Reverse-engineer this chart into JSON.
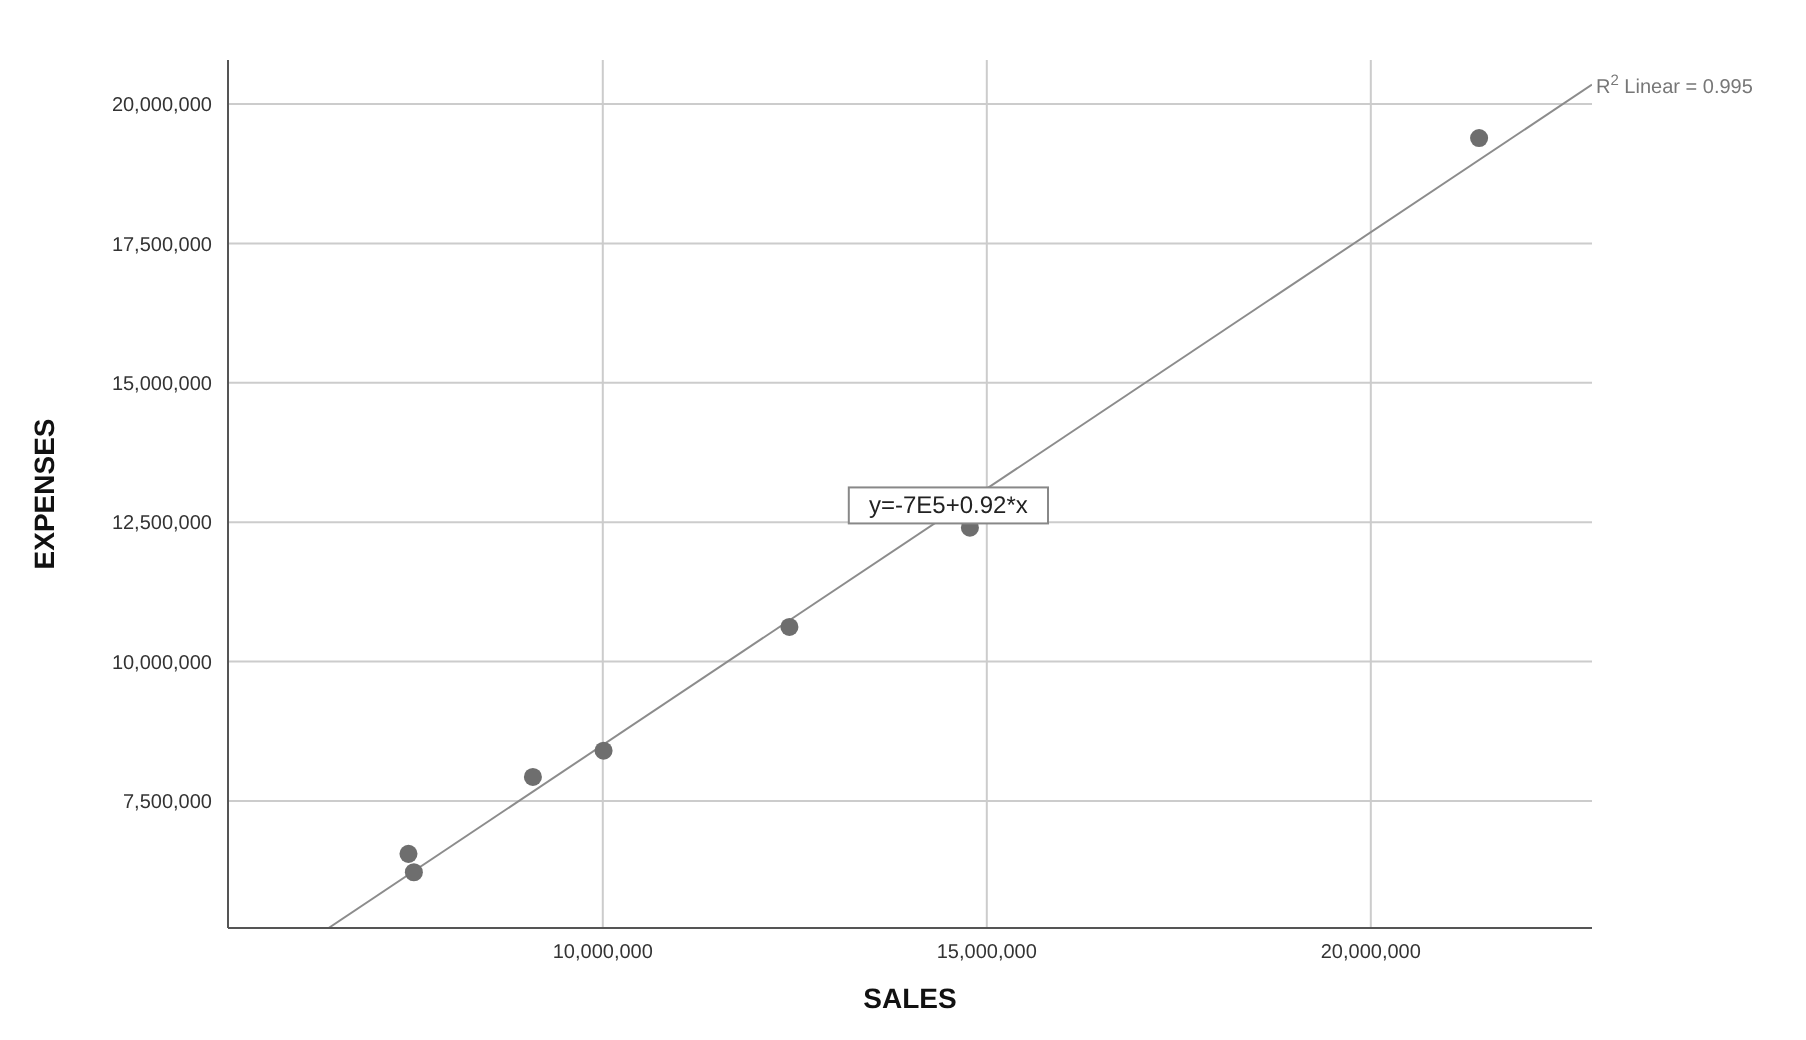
{
  "chart_data": {
    "type": "scatter",
    "xlabel": "SALES",
    "ylabel": "EXPENSES",
    "xlim": [
      5120000,
      22880000
    ],
    "xticks": [
      {
        "value": 10000000,
        "label": "10,000,000"
      },
      {
        "value": 15000000,
        "label": "15,000,000"
      },
      {
        "value": 20000000,
        "label": "20,000,000"
      }
    ],
    "ylim": [
      5220000,
      20790000
    ],
    "yticks": [
      {
        "value": 7500000,
        "label": "7,500,000"
      },
      {
        "value": 10000000,
        "label": "10,000,000"
      },
      {
        "value": 12500000,
        "label": "12,500,000"
      },
      {
        "value": 15000000,
        "label": "15,000,000"
      },
      {
        "value": 17500000,
        "label": "17,500,000"
      },
      {
        "value": 20000000,
        "label": "20,000,000"
      }
    ],
    "grid": true,
    "series": [
      {
        "marker": "circle",
        "color": "#6e6e6e",
        "x": [
          7470000,
          7540000,
          9090000,
          10010000,
          12430000,
          14780000,
          21410000
        ],
        "values": [
          6550000,
          6220000,
          7930000,
          8400000,
          10620000,
          12400000,
          19390000
        ]
      },
      {
        "type": "line",
        "color": "#8c8c8c",
        "x": [
          6430000,
          22880000
        ],
        "values": [
          5220000,
          20350000
        ]
      }
    ],
    "annotations": [
      {
        "text": "y=-7E5+0.92*x",
        "x": 14500000,
        "y": 12800000
      },
      {
        "text": "R$^{2}$ Linear = 0.995",
        "x": 22880000,
        "y": 20350000
      }
    ]
  }
}
